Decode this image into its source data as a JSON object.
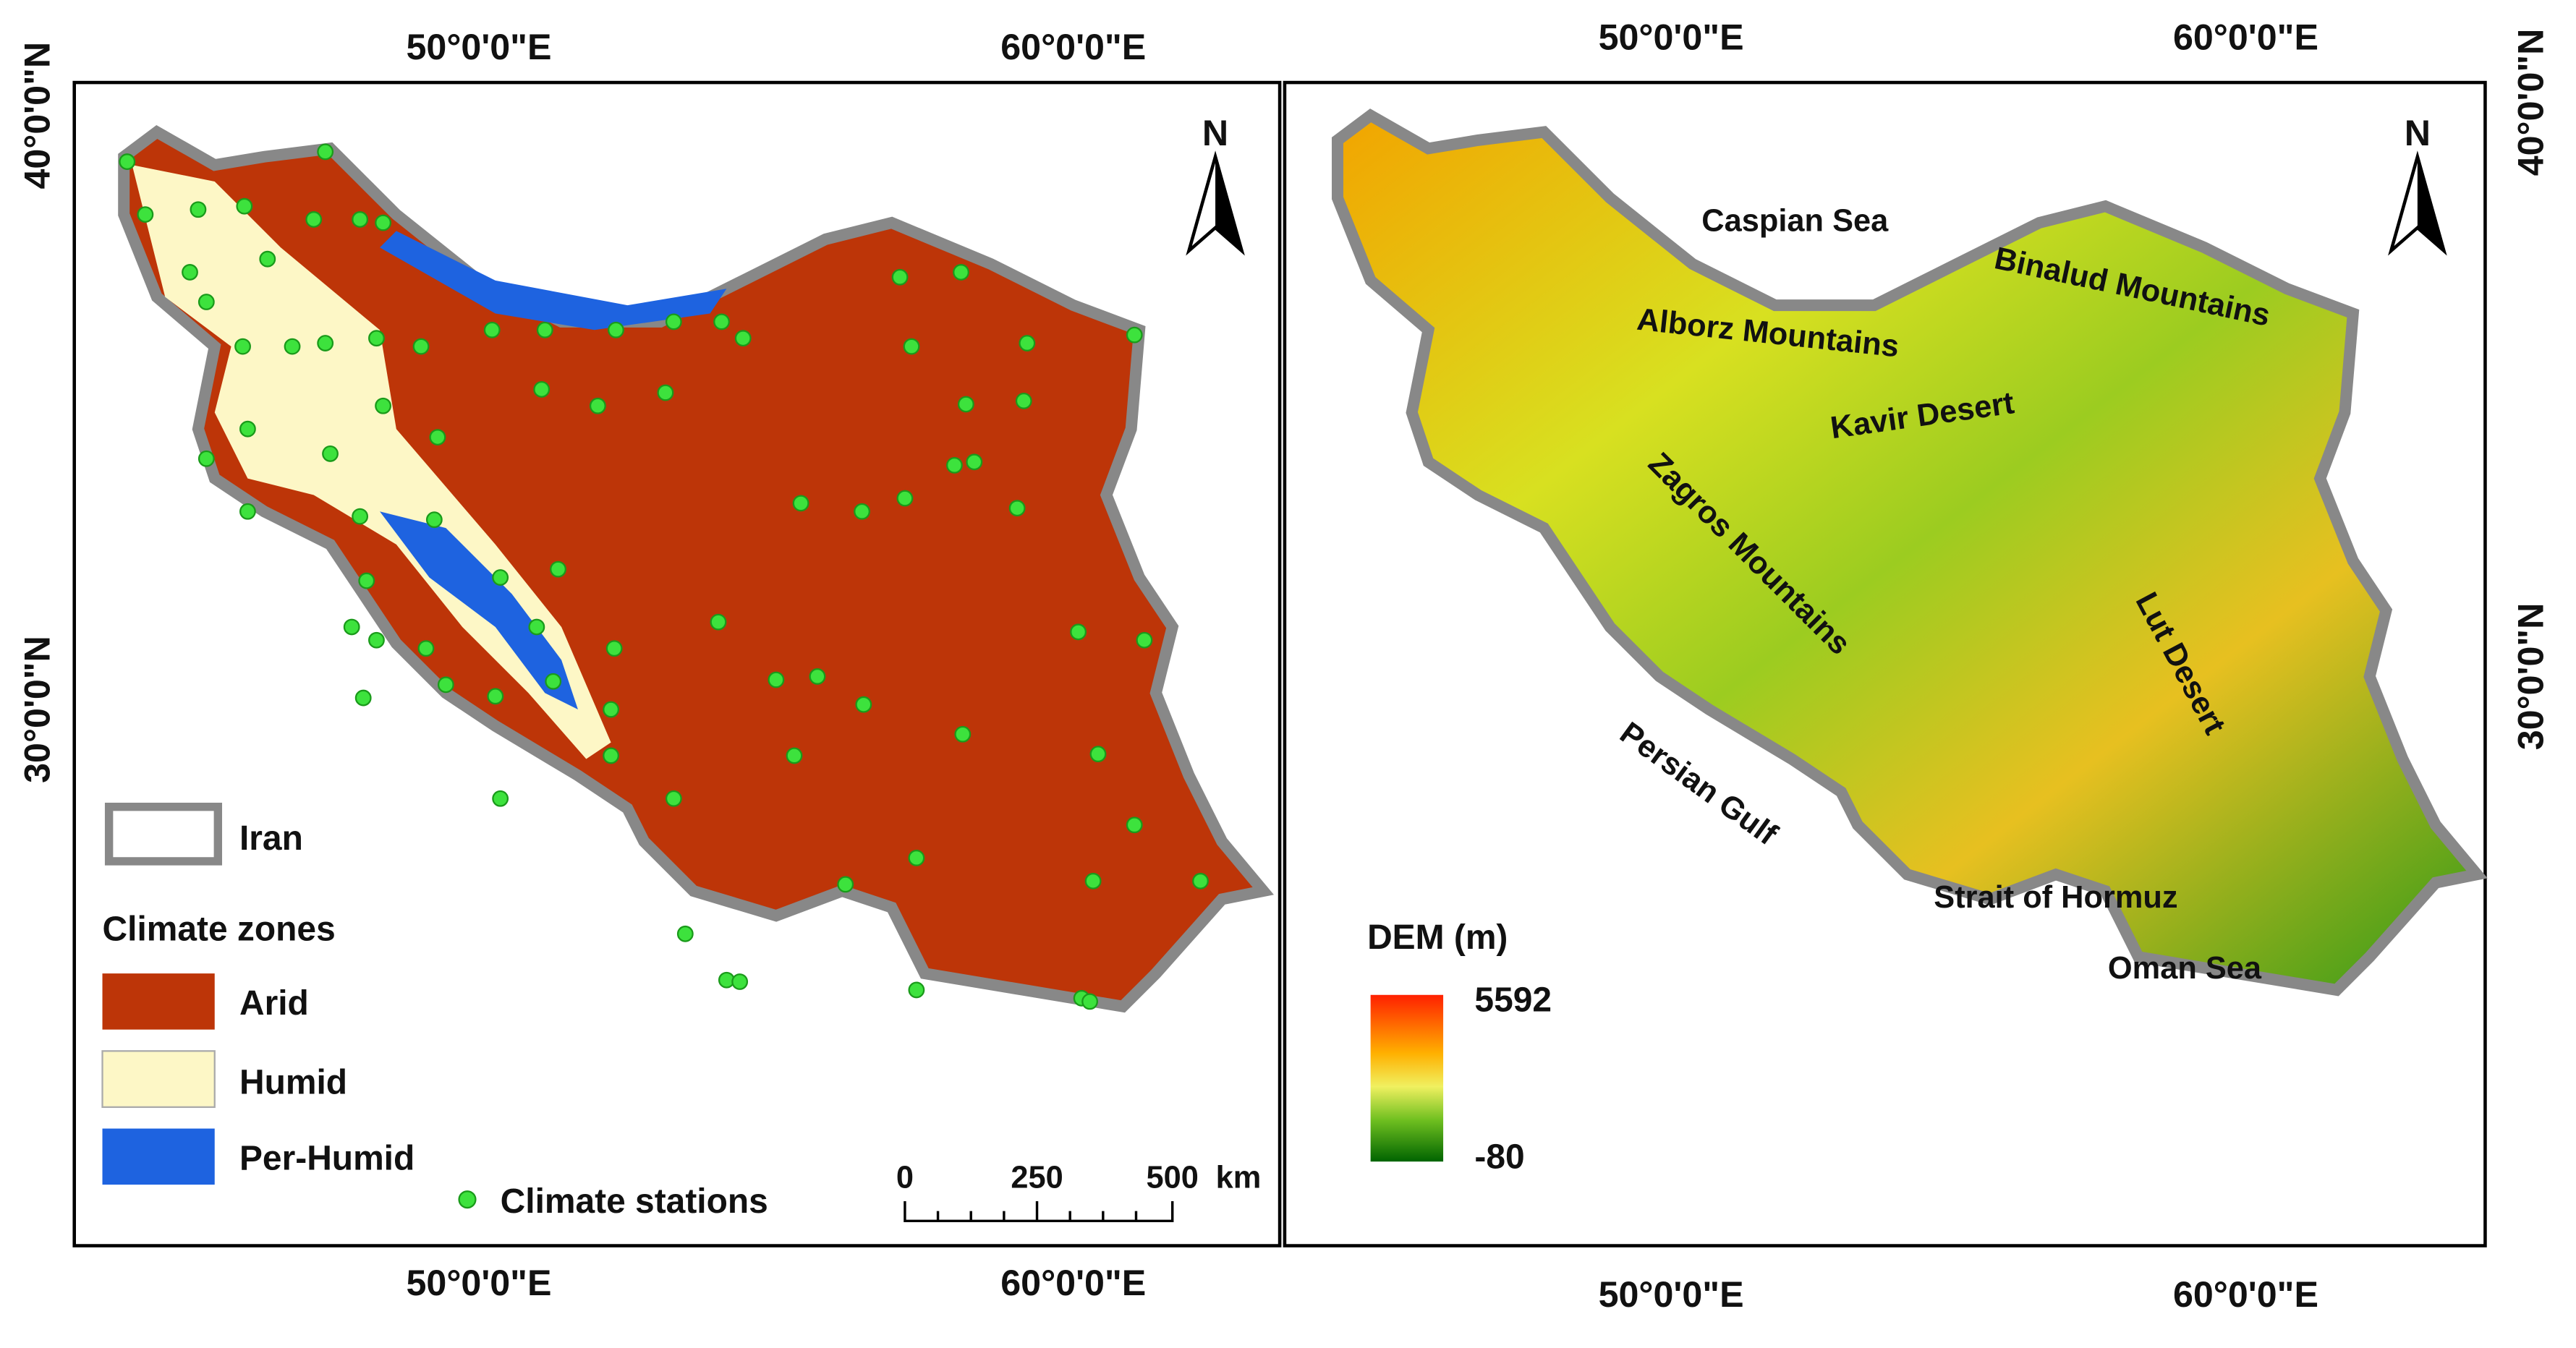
{
  "left_panel": {
    "graticule": {
      "top": [
        "50°0'0\"E",
        "60°0'0\"E"
      ],
      "bottom": [
        "50°0'0\"E",
        "60°0'0\"E"
      ],
      "left": [
        "40°0'0\"N",
        "30°0'0\"N"
      ]
    },
    "north": "N",
    "legend": {
      "boundary": "Iran",
      "zones_title": "Climate zones",
      "zones": [
        "Arid",
        "Humid",
        "Per-Humid"
      ],
      "stations": "Climate stations"
    },
    "scale_bar": [
      "0",
      "250",
      "500",
      "km"
    ]
  },
  "right_panel": {
    "graticule": {
      "top": [
        "50°0'0\"E",
        "60°0'0\"E"
      ],
      "bottom": [
        "50°0'0\"E",
        "60°0'0\"E"
      ],
      "right": [
        "40°0'0\"N",
        "30°0'0\"N"
      ]
    },
    "north": "N",
    "legend": {
      "title": "DEM (m)",
      "max": 5592,
      "min": -80
    },
    "places": [
      "Caspian Sea",
      "Binalud Mountains",
      "Alborz Mountains",
      "Kavir Desert",
      "Zagros Mountains",
      "Lut Desert",
      "Persian Gulf",
      "Strait of Hormuz",
      "Oman Sea"
    ]
  }
}
